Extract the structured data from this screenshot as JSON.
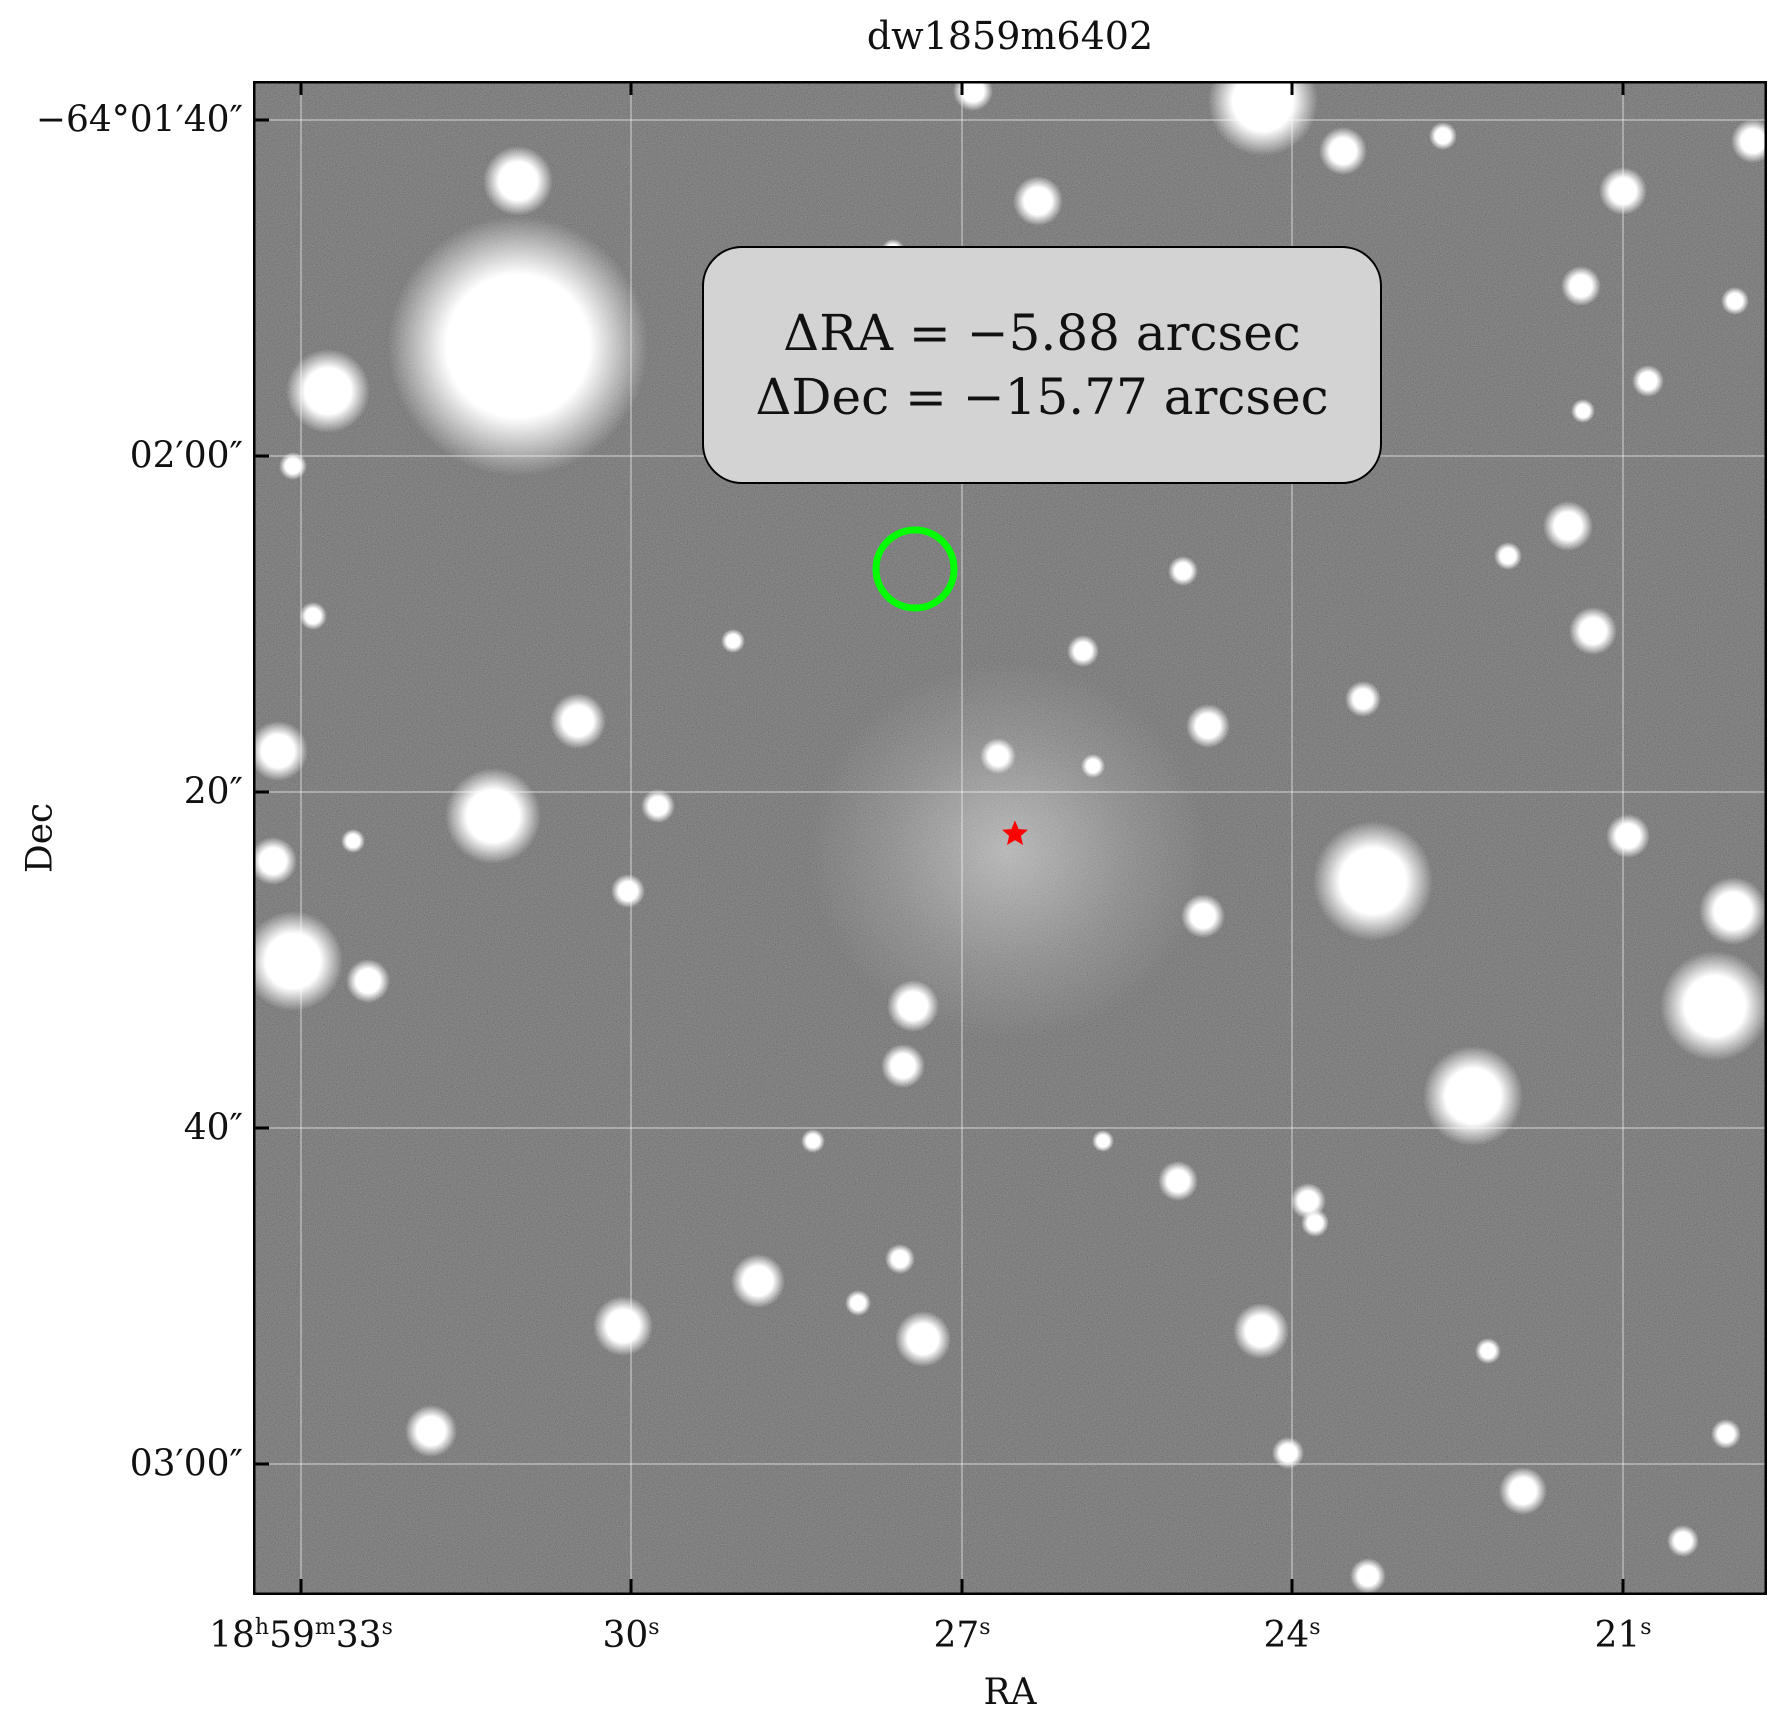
{
  "title": "dw1859m6402",
  "xlabel": "RA",
  "ylabel": "Dec",
  "annotation": {
    "dra_line": "ΔRA = −5.88 arcsec",
    "ddec_line": "ΔDec = −15.77 arcsec"
  },
  "ra_ticks": [
    {
      "h": "18",
      "m": "59",
      "s": "33",
      "hs": "h",
      "ms": "m",
      "ss": "s"
    },
    {
      "s": "30",
      "ss": "s"
    },
    {
      "s": "27",
      "ss": "s"
    },
    {
      "s": "24",
      "ss": "s"
    },
    {
      "s": "21",
      "ss": "s"
    }
  ],
  "dec_ticks": [
    "−64°01′40″",
    "02′00″",
    "20″",
    "40″",
    "03′00″"
  ],
  "colors": {
    "background_sky": "#3a3a3a",
    "circle_marker": "#00ff00",
    "star_marker": "#ff0000",
    "annotation_box": "#d3d3d3"
  },
  "markers": [
    {
      "type": "circle",
      "name": "green-circle-marker"
    },
    {
      "type": "star",
      "name": "red-star-marker"
    }
  ]
}
